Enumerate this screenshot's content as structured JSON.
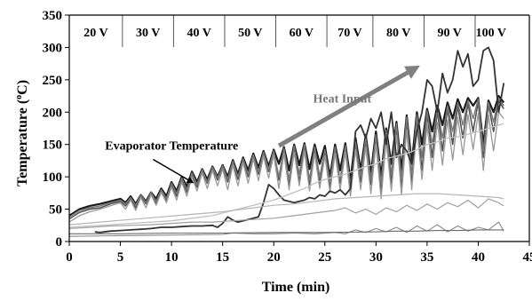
{
  "chart_data": {
    "type": "line",
    "xlabel": "Time (min)",
    "ylabel_main": "Temperature (",
    "ylabel_sup": "o",
    "ylabel_unit": "C)",
    "xlim": [
      0,
      45
    ],
    "ylim": [
      0,
      350
    ],
    "x_ticks": [
      "0",
      "5",
      "10",
      "15",
      "20",
      "25",
      "30",
      "35",
      "40",
      "45"
    ],
    "y_ticks": [
      "0",
      "50",
      "100",
      "150",
      "200",
      "250",
      "300",
      "350"
    ],
    "grid": false,
    "voltage_bands": [
      {
        "label": "20 V",
        "start": 0,
        "end": 5.2
      },
      {
        "label": "30 V",
        "start": 5.2,
        "end": 10.2
      },
      {
        "label": "40 V",
        "start": 10.2,
        "end": 15.2
      },
      {
        "label": "50 V",
        "start": 15.2,
        "end": 20.2
      },
      {
        "label": "60 V",
        "start": 20.2,
        "end": 25.2
      },
      {
        "label": "70 V",
        "start": 25.2,
        "end": 29.7
      },
      {
        "label": "80 V",
        "start": 29.7,
        "end": 34.7
      },
      {
        "label": "90 V",
        "start": 34.7,
        "end": 39.7
      },
      {
        "label": "100 V",
        "start": 39.7,
        "end": 42.8
      }
    ],
    "annotations": {
      "heat_input": {
        "text": "Heat Input",
        "arrow_from": [
          20.5,
          148
        ],
        "arrow_to": [
          34.3,
          272
        ],
        "text_at": [
          26.7,
          215
        ]
      },
      "evaporator": {
        "text": "Evaporator Temperature",
        "text_at": [
          3.5,
          142
        ],
        "arrow_from": [
          8.2,
          127
        ],
        "arrow_to": [
          12.2,
          90
        ]
      }
    },
    "series": [
      {
        "color": "#1a1a1a",
        "width": 2.2,
        "x": [
          0,
          1,
          2,
          3,
          4,
          5,
          5.5,
          6,
          6.5,
          7,
          7.5,
          8,
          8.5,
          9,
          9.5,
          10,
          10.5,
          11,
          11.5,
          12,
          12.5,
          13,
          13.5,
          14,
          14.5,
          15,
          15.5,
          16,
          16.5,
          17,
          17.5,
          18,
          18.5,
          19,
          19.5,
          20,
          20.5,
          21,
          21.5,
          22,
          22.5,
          23,
          23.5,
          24,
          24.5,
          25,
          25.5,
          26,
          26.5,
          27,
          27.5,
          28,
          28.5,
          29,
          29.5,
          30,
          30.5,
          31,
          31.5,
          32,
          32.5,
          33,
          33.5,
          34,
          34.5,
          35,
          35.5,
          36,
          36.5,
          37,
          37.5,
          38,
          38.5,
          39,
          39.5,
          40,
          40.5,
          41,
          41.5,
          42,
          42.5
        ],
        "y": [
          40,
          50,
          55,
          58,
          62,
          66,
          60,
          70,
          58,
          72,
          62,
          76,
          66,
          82,
          70,
          92,
          78,
          100,
          85,
          108,
          92,
          112,
          96,
          116,
          100,
          118,
          100,
          126,
          104,
          130,
          110,
          136,
          114,
          140,
          116,
          142,
          120,
          146,
          110,
          150,
          118,
          152,
          112,
          150,
          120,
          148,
          100,
          150,
          110,
          152,
          95,
          160,
          110,
          165,
          105,
          170,
          100,
          175,
          120,
          185,
          110,
          195,
          120,
          200,
          150,
          205,
          170,
          210,
          180,
          215,
          190,
          220,
          200,
          222,
          210,
          222,
          150,
          218,
          200,
          225,
          215
        ]
      },
      {
        "color": "#555555",
        "width": 1.6,
        "x": [
          0,
          1,
          2,
          3,
          4,
          5,
          5.5,
          6,
          6.5,
          7,
          7.5,
          8,
          8.5,
          9,
          9.5,
          10,
          10.5,
          11,
          11.5,
          12,
          12.5,
          13,
          13.5,
          14,
          14.5,
          15,
          15.5,
          16,
          16.5,
          17,
          17.5,
          18,
          18.5,
          19,
          19.5,
          20,
          20.5,
          21,
          21.5,
          22,
          22.5,
          23,
          23.5,
          24,
          24.5,
          25,
          25.5,
          26,
          26.5,
          27,
          27.5,
          28,
          28.5,
          29,
          29.5,
          30,
          30.5,
          31,
          31.5,
          32,
          32.5,
          33,
          33.5,
          34,
          34.5,
          35,
          35.5,
          36,
          36.5,
          37,
          37.5,
          38,
          38.5,
          39,
          39.5,
          40,
          40.5,
          41,
          41.5,
          42,
          42.5
        ],
        "y": [
          35,
          45,
          50,
          52,
          58,
          62,
          55,
          66,
          52,
          70,
          58,
          74,
          60,
          78,
          64,
          88,
          70,
          96,
          76,
          104,
          84,
          110,
          90,
          114,
          95,
          116,
          92,
          122,
          96,
          126,
          100,
          132,
          104,
          136,
          108,
          138,
          95,
          142,
          88,
          144,
          92,
          146,
          86,
          142,
          90,
          138,
          84,
          144,
          90,
          146,
          80,
          150,
          92,
          155,
          88,
          160,
          75,
          168,
          90,
          178,
          85,
          188,
          90,
          192,
          110,
          198,
          130,
          202,
          140,
          206,
          150,
          210,
          160,
          214,
          170,
          216,
          130,
          212,
          170,
          218,
          205
        ]
      },
      {
        "color": "#777777",
        "width": 1.4,
        "x": [
          0,
          1,
          2,
          3,
          4,
          5,
          5.5,
          6,
          6.5,
          7,
          7.5,
          8,
          8.5,
          9,
          9.5,
          10,
          10.5,
          11,
          11.5,
          12,
          12.5,
          13,
          13.5,
          14,
          14.5,
          15,
          15.5,
          16,
          16.5,
          17,
          17.5,
          18,
          18.5,
          19,
          19.5,
          20,
          20.5,
          21,
          21.5,
          22,
          22.5,
          23,
          23.5,
          24,
          24.5,
          25,
          25.5,
          26,
          26.5,
          27,
          27.5,
          28,
          28.5,
          29,
          29.5,
          30,
          30.5,
          31,
          31.5,
          32,
          32.5,
          33,
          33.5,
          34,
          34.5,
          35,
          35.5,
          36,
          36.5,
          37,
          37.5,
          38,
          38.5,
          39,
          39.5,
          40,
          40.5,
          41,
          41.5,
          42,
          42.5
        ],
        "y": [
          38,
          48,
          52,
          55,
          60,
          64,
          58,
          68,
          56,
          72,
          60,
          76,
          62,
          80,
          66,
          90,
          74,
          98,
          80,
          106,
          88,
          111,
          92,
          115,
          98,
          117,
          96,
          124,
          100,
          128,
          104,
          134,
          108,
          138,
          112,
          140,
          100,
          144,
          96,
          148,
          104,
          150,
          96,
          146,
          100,
          142,
          92,
          146,
          96,
          148,
          88,
          154,
          100,
          160,
          96,
          165,
          90,
          172,
          104,
          182,
          96,
          192,
          104,
          196,
          130,
          202,
          150,
          206,
          160,
          210,
          170,
          215,
          180,
          218,
          190,
          220,
          140,
          215,
          185,
          222,
          210
        ]
      },
      {
        "color": "#999999",
        "width": 1.3,
        "x": [
          0,
          1,
          2,
          3,
          4,
          5,
          5.5,
          6,
          6.5,
          7,
          7.5,
          8,
          8.5,
          9,
          9.5,
          10,
          10.5,
          11,
          11.5,
          12,
          12.5,
          13,
          13.5,
          14,
          14.5,
          15,
          15.5,
          16,
          16.5,
          17,
          17.5,
          18,
          18.5,
          19,
          19.5,
          20,
          20.5,
          21,
          21.5,
          22,
          22.5,
          23,
          23.5,
          24,
          24.5,
          25,
          25.5,
          26,
          26.5,
          27,
          27.5,
          28,
          28.5,
          29,
          29.5,
          30,
          30.5,
          31,
          31.5,
          32,
          32.5,
          33,
          33.5,
          34,
          34.5,
          35,
          35.5,
          36,
          36.5,
          37,
          37.5,
          38,
          38.5,
          39,
          39.5,
          40,
          40.5,
          41,
          41.5,
          42,
          42.5
        ],
        "y": [
          30,
          40,
          46,
          50,
          55,
          60,
          50,
          64,
          48,
          68,
          52,
          72,
          56,
          76,
          60,
          84,
          64,
          92,
          70,
          100,
          78,
          106,
          82,
          110,
          86,
          112,
          80,
          118,
          86,
          122,
          90,
          128,
          94,
          132,
          98,
          134,
          82,
          136,
          80,
          138,
          86,
          140,
          78,
          136,
          82,
          132,
          76,
          136,
          80,
          138,
          70,
          142,
          80,
          146,
          74,
          150,
          66,
          156,
          78,
          164,
          72,
          172,
          80,
          176,
          96,
          180,
          110,
          184,
          118,
          188,
          126,
          192,
          134,
          196,
          142,
          198,
          110,
          195,
          140,
          200,
          190
        ]
      },
      {
        "color": "#333333",
        "width": 1.8,
        "x": [
          2.5,
          3,
          4,
          5,
          6,
          7,
          8,
          9,
          10,
          11,
          12,
          13,
          14,
          14.5,
          15,
          15.5,
          16,
          16.5,
          17,
          17.5,
          18,
          18.5,
          19,
          19.5,
          20,
          20.5,
          21,
          21.5,
          22,
          22.5,
          23,
          23.5,
          24,
          24.5,
          25,
          25.5,
          26,
          26.5,
          27,
          27.5,
          28,
          28.5,
          29,
          29.5,
          30,
          30.5,
          31,
          31.5,
          32,
          32.5,
          33,
          33.5,
          34,
          34.5,
          35,
          35.5,
          36,
          36.5,
          37,
          37.5,
          38,
          38.5,
          39,
          39.5,
          40,
          40.5,
          41,
          41.5,
          42,
          42.5
        ],
        "y": [
          15,
          14,
          16,
          17,
          18,
          19,
          20,
          22,
          22,
          23,
          24,
          24,
          25,
          22,
          28,
          38,
          33,
          30,
          32,
          34,
          36,
          38,
          60,
          88,
          82,
          72,
          64,
          62,
          60,
          62,
          64,
          68,
          66,
          72,
          70,
          78,
          75,
          80,
          72,
          82,
          170,
          180,
          160,
          190,
          175,
          200,
          150,
          200,
          130,
          150,
          140,
          120,
          170,
          200,
          250,
          240,
          200,
          260,
          230,
          250,
          295,
          270,
          290,
          240,
          250,
          295,
          300,
          280,
          200,
          245
        ]
      },
      {
        "color": "#c0c0c0",
        "width": 1.3,
        "x": [
          0,
          2,
          4,
          6,
          8,
          10,
          12,
          14,
          15,
          16,
          18,
          20,
          21,
          22,
          23,
          24,
          25,
          26,
          27,
          28,
          29,
          30,
          31,
          32,
          33,
          34,
          35,
          36,
          37,
          38,
          39,
          40,
          41,
          42,
          42.5
        ],
        "y": [
          22,
          24,
          26,
          28,
          30,
          32,
          36,
          40,
          44,
          48,
          56,
          64,
          70,
          76,
          82,
          90,
          96,
          100,
          104,
          110,
          116,
          120,
          128,
          132,
          136,
          142,
          150,
          154,
          160,
          162,
          166,
          170,
          175,
          180,
          182
        ]
      },
      {
        "color": "#b5b5b5",
        "width": 1.2,
        "x": [
          0,
          3,
          6,
          9,
          12,
          15,
          18,
          20,
          22,
          24,
          26,
          28,
          30,
          32,
          34,
          36,
          38,
          40,
          42,
          42.5
        ],
        "y": [
          26,
          30,
          34,
          38,
          42,
          46,
          52,
          56,
          58,
          62,
          66,
          68,
          70,
          72,
          74,
          74,
          72,
          70,
          68,
          66
        ]
      },
      {
        "color": "#a0a0a0",
        "width": 1.2,
        "x": [
          0,
          2,
          4,
          6,
          8,
          10,
          12,
          14,
          16,
          18,
          20,
          22,
          24,
          26,
          27,
          28,
          29,
          30,
          31,
          32,
          33,
          34,
          35,
          36,
          37,
          38,
          39,
          40,
          41,
          42,
          42.5
        ],
        "y": [
          20,
          22,
          24,
          25,
          26,
          28,
          30,
          30,
          32,
          34,
          36,
          40,
          44,
          48,
          52,
          44,
          50,
          42,
          52,
          46,
          56,
          48,
          58,
          50,
          60,
          54,
          64,
          52,
          66,
          60,
          55
        ]
      },
      {
        "color": "#888888",
        "width": 1.1,
        "x": [
          0,
          5,
          10,
          15,
          16,
          18,
          20,
          22,
          24,
          26,
          27,
          28,
          29,
          30,
          31,
          32,
          33,
          34,
          35,
          36,
          37,
          38,
          39,
          40,
          41,
          42,
          42.5
        ],
        "y": [
          8,
          9,
          10,
          11,
          13,
          12,
          12,
          13,
          12,
          14,
          12,
          18,
          14,
          20,
          15,
          22,
          14,
          24,
          16,
          26,
          15,
          24,
          16,
          22,
          18,
          30,
          16
        ]
      },
      {
        "color": "#6a6a6a",
        "width": 1.1,
        "x": [
          0,
          5,
          10,
          15,
          20,
          25,
          30,
          32,
          34,
          36,
          38,
          40,
          42,
          42.5
        ],
        "y": [
          12,
          12,
          13,
          13,
          14,
          14,
          15,
          16,
          16,
          17,
          17,
          18,
          18,
          18
        ]
      }
    ]
  }
}
